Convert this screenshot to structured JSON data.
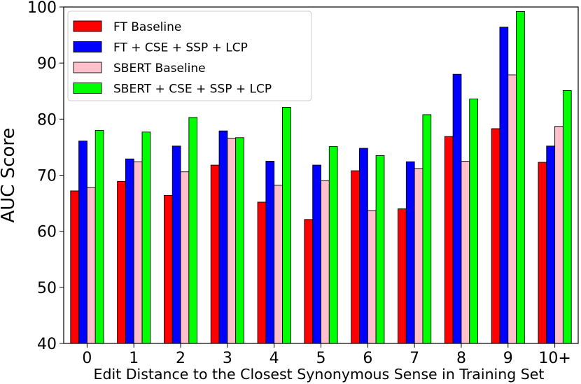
{
  "chart_data": {
    "type": "bar",
    "title": "",
    "xlabel": "Edit Distance to the Closest Synonymous Sense in Training Set",
    "ylabel": "AUC Score",
    "ylim": [
      40,
      100
    ],
    "yticks": [
      "40",
      "50",
      "60",
      "70",
      "80",
      "90",
      "100"
    ],
    "grid": false,
    "legend_position": "top-left",
    "categories": [
      "0",
      "1",
      "2",
      "3",
      "4",
      "5",
      "6",
      "7",
      "8",
      "9",
      "10+"
    ],
    "series": [
      {
        "name": "FT Baseline",
        "color": "#ff0000",
        "values": [
          67.2,
          68.9,
          66.4,
          71.8,
          65.2,
          62.1,
          70.8,
          64.0,
          76.9,
          78.3,
          72.3
        ]
      },
      {
        "name": "FT + CSE + SSP + LCP",
        "color": "#0000ff",
        "values": [
          76.1,
          72.9,
          75.2,
          77.9,
          72.5,
          71.8,
          74.8,
          72.4,
          88.0,
          96.4,
          75.2
        ]
      },
      {
        "name": "SBERT Baseline",
        "color": "#ffc0cb",
        "values": [
          67.8,
          72.4,
          70.6,
          76.6,
          68.2,
          69.0,
          63.7,
          71.2,
          72.5,
          87.9,
          78.7
        ]
      },
      {
        "name": "SBERT + CSE + SSP + LCP",
        "color": "#00ff00",
        "values": [
          78.0,
          77.7,
          80.3,
          76.7,
          82.1,
          75.1,
          73.5,
          80.8,
          83.6,
          99.2,
          85.1
        ]
      }
    ]
  }
}
